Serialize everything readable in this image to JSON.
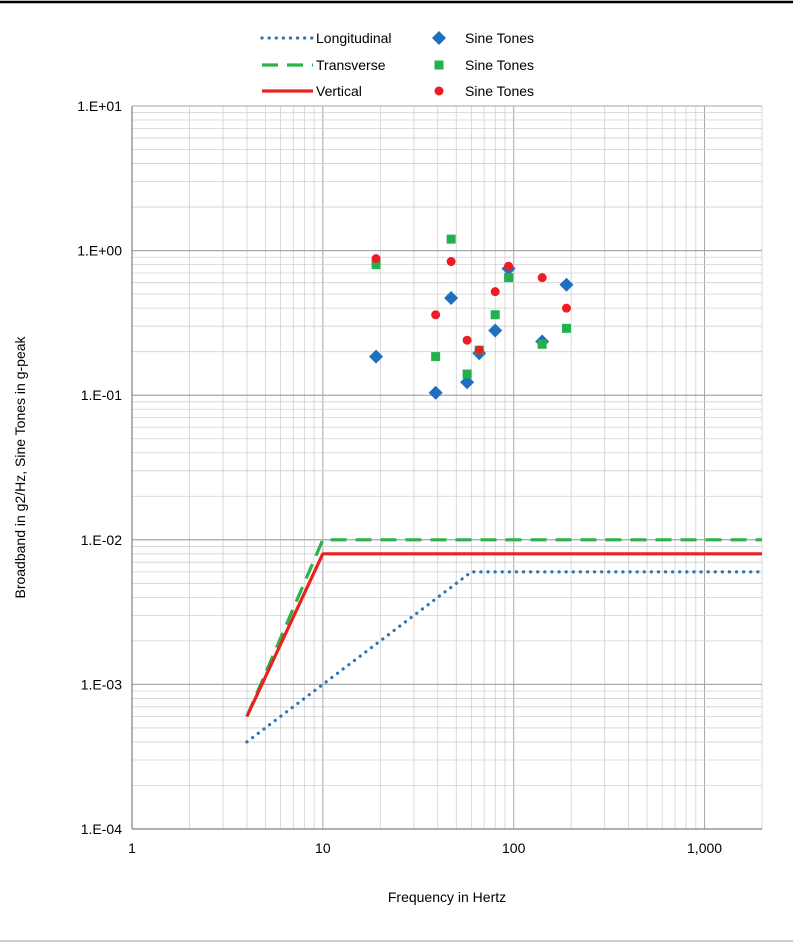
{
  "chart_data": {
    "type": "scatter",
    "title": "",
    "xlabel": "Frequency in Hertz",
    "ylabel": "Broadband in g2/Hz, Sine Tones in g-peak",
    "x_scale": "log",
    "y_scale": "log",
    "xlim": [
      1,
      2000
    ],
    "ylim": [
      0.0001,
      10
    ],
    "x_ticks": [
      {
        "value": 1,
        "label": "1"
      },
      {
        "value": 10,
        "label": "10"
      },
      {
        "value": 100,
        "label": "100"
      },
      {
        "value": 1000,
        "label": "1,000"
      }
    ],
    "y_ticks": [
      {
        "value": 0.0001,
        "label": "1.E-04"
      },
      {
        "value": 0.001,
        "label": "1.E-03"
      },
      {
        "value": 0.01,
        "label": "1.E-02"
      },
      {
        "value": 0.1,
        "label": "1.E-01"
      },
      {
        "value": 1,
        "label": "1.E+00"
      },
      {
        "value": 10,
        "label": "1.E+01"
      }
    ],
    "grid": true,
    "legend_position": "top-center",
    "series": [
      {
        "name": "Longitudinal",
        "kind": "line",
        "dash": "dotted",
        "color": "#2E75B6",
        "points": [
          [
            4,
            0.0004
          ],
          [
            60,
            0.006
          ],
          [
            2000,
            0.006
          ]
        ]
      },
      {
        "name": "Transverse",
        "kind": "line",
        "dash": "dashed",
        "color": "#2DB34A",
        "points": [
          [
            4,
            0.0006
          ],
          [
            10,
            0.01
          ],
          [
            2000,
            0.01
          ]
        ]
      },
      {
        "name": "Vertical",
        "kind": "line",
        "dash": "solid",
        "color": "#E8221F",
        "points": [
          [
            4,
            0.0006
          ],
          [
            10,
            0.008
          ],
          [
            2000,
            0.008
          ]
        ]
      },
      {
        "name": "Sine Tones",
        "kind": "marker",
        "marker": "diamond",
        "color": "#1F6FC0",
        "points": [
          [
            19,
            0.185
          ],
          [
            39,
            0.104
          ],
          [
            47,
            0.47
          ],
          [
            57,
            0.123
          ],
          [
            66,
            0.195
          ],
          [
            80,
            0.28
          ],
          [
            94,
            0.75
          ],
          [
            141,
            0.235
          ],
          [
            189,
            0.58
          ]
        ]
      },
      {
        "name": "Sine Tones",
        "kind": "marker",
        "marker": "square",
        "color": "#22B14C",
        "points": [
          [
            19,
            0.8
          ],
          [
            39,
            0.185
          ],
          [
            47,
            1.2
          ],
          [
            57,
            0.14
          ],
          [
            66,
            0.205
          ],
          [
            80,
            0.36
          ],
          [
            94,
            0.65
          ],
          [
            141,
            0.225
          ],
          [
            189,
            0.29
          ]
        ]
      },
      {
        "name": "Sine Tones",
        "kind": "marker",
        "marker": "circle",
        "color": "#EE1C24",
        "points": [
          [
            19,
            0.88
          ],
          [
            39,
            0.36
          ],
          [
            47,
            0.84
          ],
          [
            57,
            0.24
          ],
          [
            66,
            0.205
          ],
          [
            80,
            0.52
          ],
          [
            94,
            0.78
          ],
          [
            141,
            0.65
          ],
          [
            189,
            0.4
          ]
        ]
      }
    ]
  }
}
